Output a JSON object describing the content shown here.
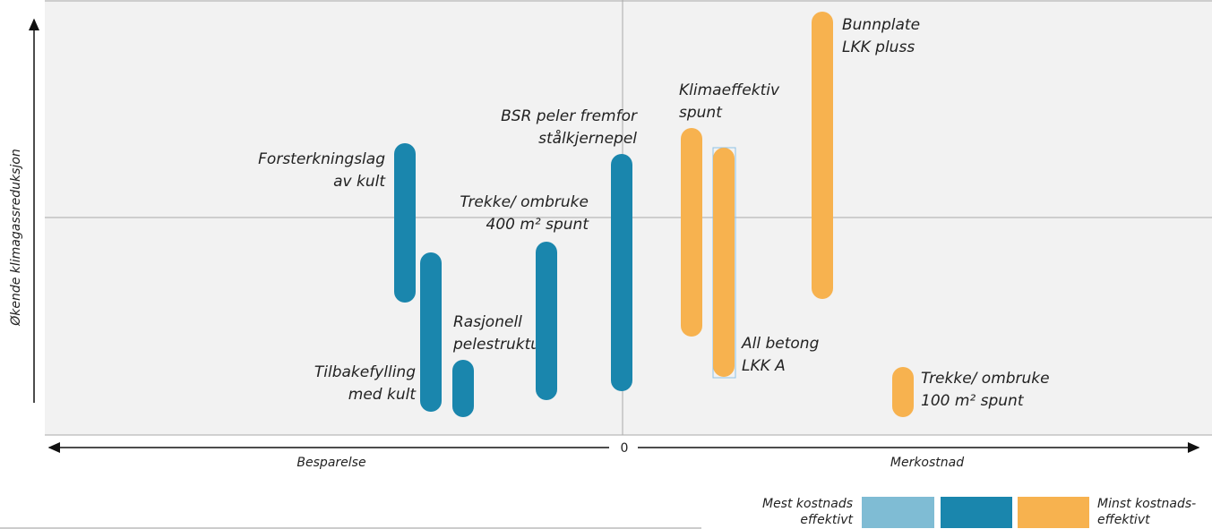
{
  "axes": {
    "y_label": "Økende klimagassreduksjon",
    "x_left": "Besparelse",
    "x_right": "Merkostnad",
    "x_origin": "0"
  },
  "items": [
    {
      "label": [
        "Forsterkningslag",
        "av kult"
      ]
    },
    {
      "label": [
        "Tilbakefylling",
        "med kult"
      ]
    },
    {
      "label": [
        "Rasjonell",
        "pelestruktur"
      ]
    },
    {
      "label": [
        "Trekke/ ombruke",
        "400 m² spunt"
      ]
    },
    {
      "label": [
        "BSR peler fremfor",
        "stålkjernepel"
      ]
    },
    {
      "label": [
        "Klimaeffektiv",
        "spunt"
      ]
    },
    {
      "label": [
        "All betong",
        "LKK A"
      ]
    },
    {
      "label": [
        "Bunnplate",
        "LKK pluss"
      ]
    },
    {
      "label": [
        "Trekke/ ombruke",
        "100 m² spunt"
      ]
    }
  ],
  "legend": {
    "left": [
      "Mest kostnads",
      "effektivt"
    ],
    "right": [
      "Minst kostnads-",
      "effektivt"
    ]
  }
}
